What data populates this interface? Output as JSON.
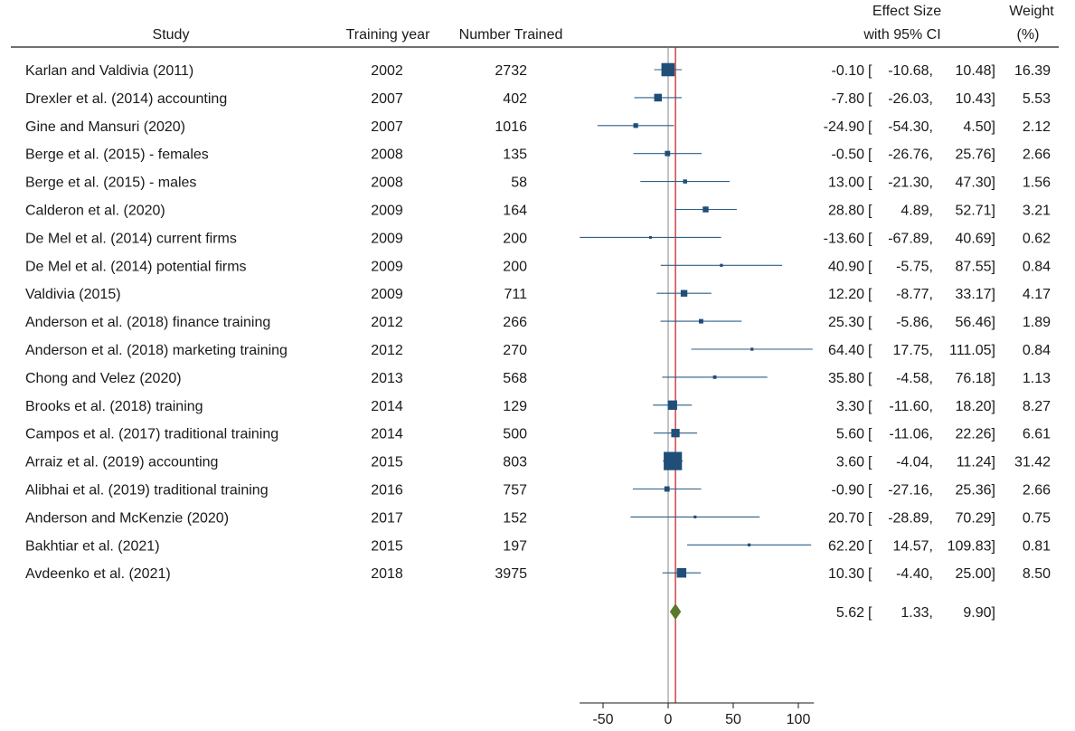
{
  "chart_data": {
    "type": "forest",
    "headers": {
      "study": "Study",
      "training_year": "Training year",
      "number_trained": "Number Trained",
      "effect_line1": "Effect Size",
      "effect_line2": "with 95% CI",
      "weight_line1": "Weight",
      "weight_line2": "(%)"
    },
    "x_ticks": [
      -50,
      0,
      50,
      100
    ],
    "x_range": [
      -68,
      112
    ],
    "null_line": 0,
    "studies": [
      {
        "study": "Karlan and Valdivia (2011)",
        "year": "2002",
        "n": "2732",
        "es": -0.1,
        "lo": -10.68,
        "hi": 10.48,
        "w": 16.39,
        "es_txt": "-0.10",
        "lo_txt": "-10.68,",
        "hi_txt": "10.48]",
        "w_txt": "16.39"
      },
      {
        "study": "Drexler et al. (2014) accounting",
        "year": "2007",
        "n": "402",
        "es": -7.8,
        "lo": -26.03,
        "hi": 10.43,
        "w": 5.53,
        "es_txt": "-7.80",
        "lo_txt": "-26.03,",
        "hi_txt": "10.43]",
        "w_txt": "5.53"
      },
      {
        "study": "Gine and Mansuri (2020)",
        "year": "2007",
        "n": "1016",
        "es": -24.9,
        "lo": -54.3,
        "hi": 4.5,
        "w": 2.12,
        "es_txt": "-24.90",
        "lo_txt": "-54.30,",
        "hi_txt": "4.50]",
        "w_txt": "2.12"
      },
      {
        "study": "Berge et al. (2015) - females",
        "year": "2008",
        "n": "135",
        "es": -0.5,
        "lo": -26.76,
        "hi": 25.76,
        "w": 2.66,
        "es_txt": "-0.50",
        "lo_txt": "-26.76,",
        "hi_txt": "25.76]",
        "w_txt": "2.66"
      },
      {
        "study": "Berge et al. (2015) - males",
        "year": "2008",
        "n": "58",
        "es": 13.0,
        "lo": -21.3,
        "hi": 47.3,
        "w": 1.56,
        "es_txt": "13.00",
        "lo_txt": "-21.30,",
        "hi_txt": "47.30]",
        "w_txt": "1.56"
      },
      {
        "study": "Calderon et al. (2020)",
        "year": "2009",
        "n": "164",
        "es": 28.8,
        "lo": 4.89,
        "hi": 52.71,
        "w": 3.21,
        "es_txt": "28.80",
        "lo_txt": "4.89,",
        "hi_txt": "52.71]",
        "w_txt": "3.21"
      },
      {
        "study": "De Mel et al. (2014) current firms",
        "year": "2009",
        "n": "200",
        "es": -13.6,
        "lo": -67.89,
        "hi": 40.69,
        "w": 0.62,
        "es_txt": "-13.60",
        "lo_txt": "-67.89,",
        "hi_txt": "40.69]",
        "w_txt": "0.62"
      },
      {
        "study": "De Mel et al. (2014) potential firms",
        "year": "2009",
        "n": "200",
        "es": 40.9,
        "lo": -5.75,
        "hi": 87.55,
        "w": 0.84,
        "es_txt": "40.90",
        "lo_txt": "-5.75,",
        "hi_txt": "87.55]",
        "w_txt": "0.84"
      },
      {
        "study": "Valdivia (2015)",
        "year": "2009",
        "n": "711",
        "es": 12.2,
        "lo": -8.77,
        "hi": 33.17,
        "w": 4.17,
        "es_txt": "12.20",
        "lo_txt": "-8.77,",
        "hi_txt": "33.17]",
        "w_txt": "4.17"
      },
      {
        "study": "Anderson et al. (2018) finance training",
        "year": "2012",
        "n": "266",
        "es": 25.3,
        "lo": -5.86,
        "hi": 56.46,
        "w": 1.89,
        "es_txt": "25.30",
        "lo_txt": "-5.86,",
        "hi_txt": "56.46]",
        "w_txt": "1.89"
      },
      {
        "study": "Anderson et al. (2018) marketing training",
        "year": "2012",
        "n": "270",
        "es": 64.4,
        "lo": 17.75,
        "hi": 111.05,
        "w": 0.84,
        "es_txt": "64.40",
        "lo_txt": "17.75,",
        "hi_txt": "111.05]",
        "w_txt": "0.84"
      },
      {
        "study": "Chong and Velez (2020)",
        "year": "2013",
        "n": "568",
        "es": 35.8,
        "lo": -4.58,
        "hi": 76.18,
        "w": 1.13,
        "es_txt": "35.80",
        "lo_txt": "-4.58,",
        "hi_txt": "76.18]",
        "w_txt": "1.13"
      },
      {
        "study": "Brooks et al. (2018) training",
        "year": "2014",
        "n": "129",
        "es": 3.3,
        "lo": -11.6,
        "hi": 18.2,
        "w": 8.27,
        "es_txt": "3.30",
        "lo_txt": "-11.60,",
        "hi_txt": "18.20]",
        "w_txt": "8.27"
      },
      {
        "study": "Campos et al. (2017) traditional training",
        "year": "2014",
        "n": "500",
        "es": 5.6,
        "lo": -11.06,
        "hi": 22.26,
        "w": 6.61,
        "es_txt": "5.60",
        "lo_txt": "-11.06,",
        "hi_txt": "22.26]",
        "w_txt": "6.61"
      },
      {
        "study": "Arraiz et al. (2019) accounting",
        "year": "2015",
        "n": "803",
        "es": 3.6,
        "lo": -4.04,
        "hi": 11.24,
        "w": 31.42,
        "es_txt": "3.60",
        "lo_txt": "-4.04,",
        "hi_txt": "11.24]",
        "w_txt": "31.42"
      },
      {
        "study": "Alibhai et al. (2019) traditional training",
        "year": "2016",
        "n": "757",
        "es": -0.9,
        "lo": -27.16,
        "hi": 25.36,
        "w": 2.66,
        "es_txt": "-0.90",
        "lo_txt": "-27.16,",
        "hi_txt": "25.36]",
        "w_txt": "2.66"
      },
      {
        "study": "Anderson and McKenzie (2020)",
        "year": "2017",
        "n": "152",
        "es": 20.7,
        "lo": -28.89,
        "hi": 70.29,
        "w": 0.75,
        "es_txt": "20.70",
        "lo_txt": "-28.89,",
        "hi_txt": "70.29]",
        "w_txt": "0.75"
      },
      {
        "study": "Bakhtiar et al. (2021)",
        "year": "2015",
        "n": "197",
        "es": 62.2,
        "lo": 14.57,
        "hi": 109.83,
        "w": 0.81,
        "es_txt": "62.20",
        "lo_txt": "14.57,",
        "hi_txt": "109.83]",
        "w_txt": "0.81"
      },
      {
        "study": "Avdeenko et al. (2021)",
        "year": "2018",
        "n": "3975",
        "es": 10.3,
        "lo": -4.4,
        "hi": 25.0,
        "w": 8.5,
        "es_txt": "10.30",
        "lo_txt": "-4.40,",
        "hi_txt": "25.00]",
        "w_txt": "8.50"
      }
    ],
    "overall": {
      "es": 5.62,
      "lo": 1.33,
      "hi": 9.9,
      "es_txt": "5.62",
      "lo_txt": "1.33,",
      "hi_txt": "9.90]"
    },
    "colors": {
      "marker": "#1f4e79",
      "ci_line": "#2e5f86",
      "overall": "#5a7a2a",
      "overall_line": "#c62828",
      "null_line": "#8a8a8a"
    }
  }
}
